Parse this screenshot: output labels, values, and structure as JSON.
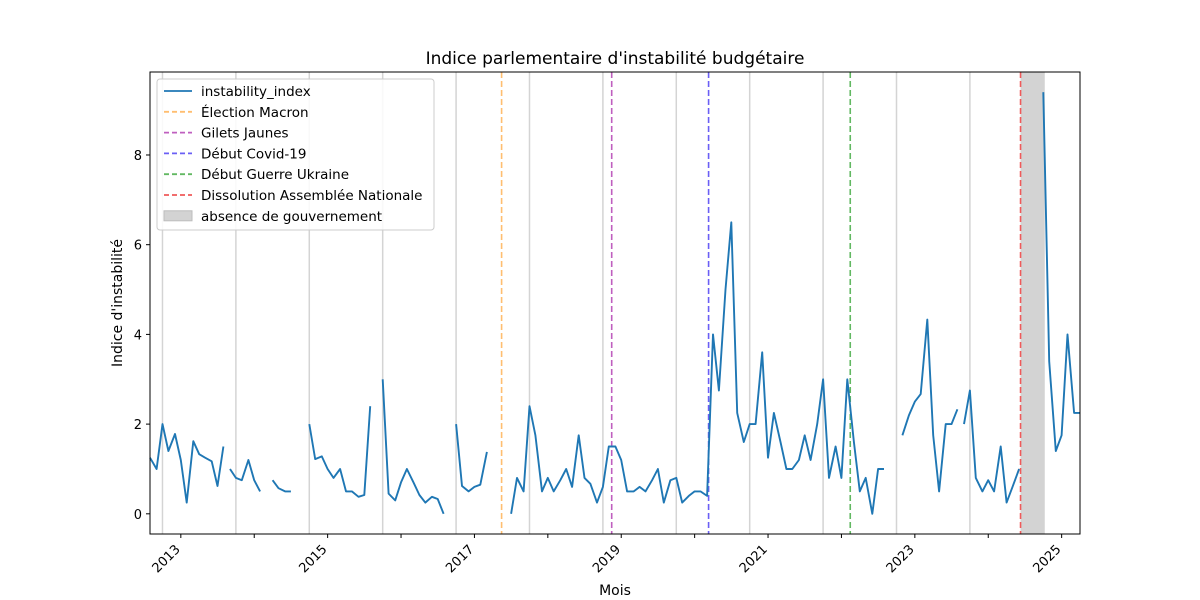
{
  "chart_data": {
    "type": "line",
    "title": "Indice parlementaire d'instabilité budgétaire",
    "xlabel": "Mois",
    "ylabel": "Indice d'instabilité",
    "xlim": [
      2012.58,
      2025.25
    ],
    "ylim": [
      -0.45,
      9.85
    ],
    "y_ticks": [
      0,
      2,
      4,
      6,
      8
    ],
    "x_ticks": [
      2013,
      2015,
      2017,
      2019,
      2021,
      2023,
      2025
    ],
    "x_minor_ticks": [
      2014,
      2016,
      2018,
      2020,
      2022,
      2024
    ],
    "grey_vertical_lines": [
      2012.75,
      2013.75,
      2014.75,
      2015.75,
      2016.75,
      2017.75,
      2018.75,
      2019.75,
      2020.75,
      2021.75,
      2022.75,
      2023.75
    ],
    "events": [
      {
        "name": "Élection Macron",
        "x": 2017.37,
        "color": "#ffbe70"
      },
      {
        "name": "Gilets Jaunes",
        "x": 2018.87,
        "color": "#bf5fbf"
      },
      {
        "name": "Début Covid-19",
        "x": 2020.19,
        "color": "#6a5ff5"
      },
      {
        "name": "Début Guerre Ukraine",
        "x": 2022.12,
        "color": "#62b862"
      },
      {
        "name": "Dissolution Assemblée Nationale",
        "x": 2024.44,
        "color": "#ef5a5a"
      }
    ],
    "shaded_regions": [
      {
        "name": "absence de gouvernement",
        "x0": 2024.44,
        "x1": 2024.77,
        "color": "#d3d3d3"
      }
    ],
    "series": [
      {
        "name": "instability_index",
        "color": "#1f77b4",
        "segments": [
          [
            [
              2012.58,
              1.25
            ],
            [
              2012.67,
              1.0
            ],
            [
              2012.75,
              2.0
            ],
            [
              2012.83,
              1.4
            ],
            [
              2012.92,
              1.78
            ],
            [
              2013.0,
              1.2
            ],
            [
              2013.08,
              0.25
            ],
            [
              2013.17,
              1.62
            ],
            [
              2013.25,
              1.33
            ],
            [
              2013.33,
              1.25
            ],
            [
              2013.42,
              1.17
            ],
            [
              2013.5,
              0.62
            ],
            [
              2013.58,
              1.5
            ]
          ],
          [
            [
              2013.67,
              1.0
            ],
            [
              2013.75,
              0.8
            ],
            [
              2013.83,
              0.75
            ],
            [
              2013.92,
              1.2
            ],
            [
              2014.0,
              0.75
            ],
            [
              2014.08,
              0.5
            ]
          ],
          [
            [
              2014.25,
              0.75
            ],
            [
              2014.33,
              0.57
            ],
            [
              2014.42,
              0.5
            ],
            [
              2014.5,
              0.5
            ]
          ],
          [
            [
              2014.75,
              2.0
            ],
            [
              2014.83,
              1.22
            ],
            [
              2014.92,
              1.28
            ],
            [
              2015.0,
              1.0
            ],
            [
              2015.08,
              0.8
            ],
            [
              2015.17,
              1.0
            ],
            [
              2015.25,
              0.5
            ],
            [
              2015.33,
              0.5
            ],
            [
              2015.42,
              0.38
            ],
            [
              2015.5,
              0.42
            ],
            [
              2015.58,
              2.4
            ]
          ],
          [
            [
              2015.75,
              3.0
            ],
            [
              2015.83,
              0.45
            ],
            [
              2015.92,
              0.3
            ],
            [
              2016.0,
              0.7
            ],
            [
              2016.08,
              1.0
            ],
            [
              2016.17,
              0.7
            ],
            [
              2016.25,
              0.42
            ],
            [
              2016.33,
              0.25
            ],
            [
              2016.42,
              0.38
            ],
            [
              2016.5,
              0.33
            ],
            [
              2016.58,
              0.0
            ]
          ],
          [
            [
              2016.75,
              2.0
            ],
            [
              2016.83,
              0.62
            ],
            [
              2016.92,
              0.5
            ],
            [
              2017.0,
              0.6
            ],
            [
              2017.08,
              0.65
            ],
            [
              2017.17,
              1.38
            ]
          ],
          [
            [
              2017.5,
              0.0
            ],
            [
              2017.58,
              0.8
            ],
            [
              2017.67,
              0.5
            ],
            [
              2017.75,
              2.4
            ],
            [
              2017.83,
              1.75
            ],
            [
              2017.92,
              0.5
            ],
            [
              2018.0,
              0.8
            ],
            [
              2018.08,
              0.5
            ],
            [
              2018.17,
              0.75
            ],
            [
              2018.25,
              1.0
            ],
            [
              2018.33,
              0.6
            ],
            [
              2018.42,
              1.75
            ],
            [
              2018.5,
              0.8
            ],
            [
              2018.58,
              0.67
            ],
            [
              2018.67,
              0.25
            ],
            [
              2018.75,
              0.6
            ],
            [
              2018.83,
              1.5
            ],
            [
              2018.92,
              1.5
            ],
            [
              2019.0,
              1.2
            ],
            [
              2019.08,
              0.5
            ],
            [
              2019.17,
              0.5
            ],
            [
              2019.25,
              0.6
            ],
            [
              2019.33,
              0.5
            ],
            [
              2019.42,
              0.75
            ],
            [
              2019.5,
              1.0
            ],
            [
              2019.58,
              0.25
            ],
            [
              2019.67,
              0.75
            ],
            [
              2019.75,
              0.8
            ],
            [
              2019.83,
              0.25
            ],
            [
              2019.92,
              0.4
            ],
            [
              2020.0,
              0.5
            ],
            [
              2020.08,
              0.5
            ],
            [
              2020.17,
              0.4
            ],
            [
              2020.25,
              4.0
            ],
            [
              2020.33,
              2.75
            ],
            [
              2020.42,
              5.0
            ],
            [
              2020.5,
              6.5
            ],
            [
              2020.58,
              2.25
            ],
            [
              2020.67,
              1.6
            ],
            [
              2020.75,
              2.0
            ],
            [
              2020.83,
              2.0
            ],
            [
              2020.92,
              3.6
            ],
            [
              2021.0,
              1.25
            ],
            [
              2021.08,
              2.25
            ],
            [
              2021.17,
              1.6
            ],
            [
              2021.25,
              1.0
            ],
            [
              2021.33,
              1.0
            ],
            [
              2021.42,
              1.2
            ],
            [
              2021.5,
              1.75
            ],
            [
              2021.58,
              1.2
            ],
            [
              2021.67,
              2.0
            ],
            [
              2021.75,
              3.0
            ],
            [
              2021.83,
              0.8
            ],
            [
              2021.92,
              1.5
            ],
            [
              2022.0,
              0.8
            ],
            [
              2022.08,
              3.0
            ],
            [
              2022.17,
              1.6
            ],
            [
              2022.25,
              0.5
            ],
            [
              2022.33,
              0.8
            ],
            [
              2022.42,
              0.0
            ],
            [
              2022.5,
              1.0
            ],
            [
              2022.58,
              1.0
            ]
          ],
          [
            [
              2022.83,
              1.75
            ],
            [
              2022.92,
              2.2
            ],
            [
              2023.0,
              2.5
            ],
            [
              2023.08,
              2.67
            ],
            [
              2023.17,
              4.33
            ],
            [
              2023.25,
              1.75
            ],
            [
              2023.33,
              0.5
            ],
            [
              2023.42,
              2.0
            ],
            [
              2023.5,
              2.0
            ],
            [
              2023.58,
              2.33
            ]
          ],
          [
            [
              2023.67,
              2.0
            ],
            [
              2023.75,
              2.75
            ],
            [
              2023.83,
              0.8
            ],
            [
              2023.92,
              0.5
            ],
            [
              2024.0,
              0.75
            ],
            [
              2024.08,
              0.5
            ],
            [
              2024.17,
              1.5
            ],
            [
              2024.25,
              0.25
            ],
            [
              2024.33,
              0.6
            ],
            [
              2024.42,
              1.0
            ]
          ],
          [
            [
              2024.75,
              9.4
            ],
            [
              2024.83,
              3.4
            ],
            [
              2024.92,
              1.4
            ],
            [
              2025.0,
              1.75
            ],
            [
              2025.08,
              4.0
            ],
            [
              2025.17,
              2.25
            ],
            [
              2025.25,
              2.25
            ]
          ]
        ]
      }
    ],
    "legend": {
      "position": "upper-left",
      "entries": [
        "instability_index",
        "Élection Macron",
        "Gilets Jaunes",
        "Début Covid-19",
        "Début Guerre Ukraine",
        "Dissolution Assemblée Nationale",
        "absence de gouvernement"
      ]
    }
  }
}
